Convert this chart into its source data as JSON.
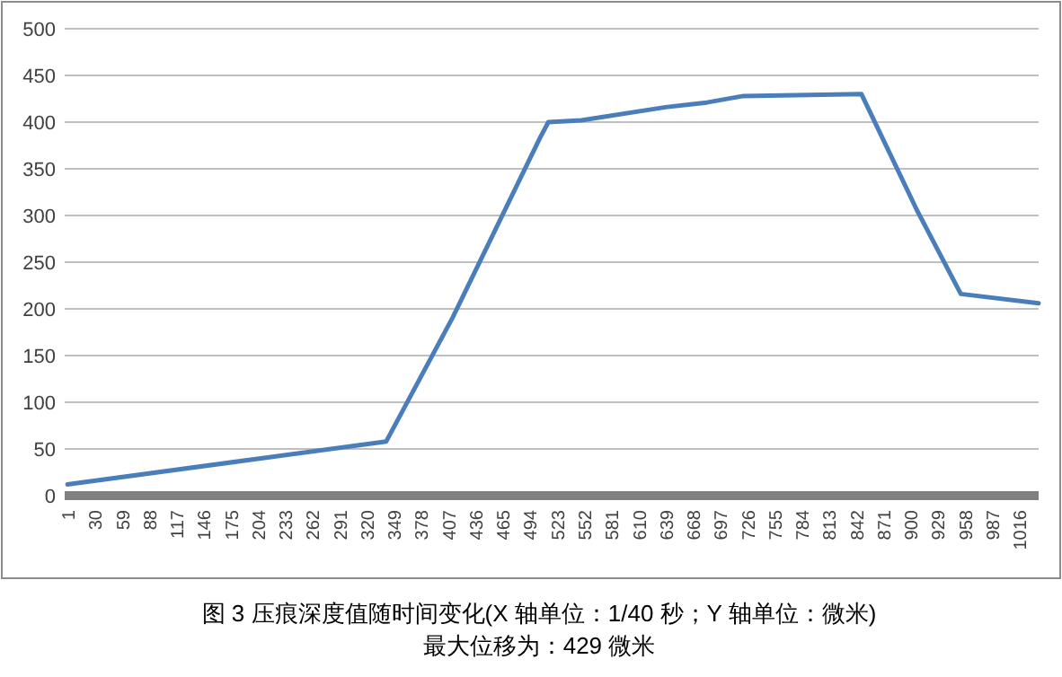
{
  "chart_data": {
    "type": "line",
    "x": [
      1,
      341,
      412,
      505,
      514,
      549,
      639,
      683,
      722,
      792,
      848,
      907,
      954,
      1037
    ],
    "series": [
      {
        "color": "#4a7ebb",
        "values": [
          12,
          58,
          191,
          383,
          400,
          402,
          416,
          421,
          428,
          429,
          430,
          306,
          216,
          206
        ]
      }
    ],
    "xlim": [
      -2,
      1037
    ],
    "xticks": [
      1,
      30,
      59,
      88,
      117,
      146,
      175,
      204,
      233,
      262,
      291,
      320,
      349,
      378,
      407,
      436,
      465,
      494,
      523,
      552,
      581,
      610,
      639,
      668,
      697,
      726,
      755,
      784,
      813,
      842,
      871,
      900,
      929,
      958,
      987,
      1016
    ],
    "ylim": [
      0,
      500
    ],
    "yticks": [
      0,
      50,
      100,
      150,
      200,
      250,
      300,
      350,
      400,
      450,
      500
    ],
    "grid": "y",
    "marker": "none",
    "line_style": "solid",
    "annotations": [
      "图 3 压痕深度值随时间变化(X 轴单位：1/40 秒；Y 轴单位：微米)",
      "最大位移为：429 微米"
    ]
  }
}
